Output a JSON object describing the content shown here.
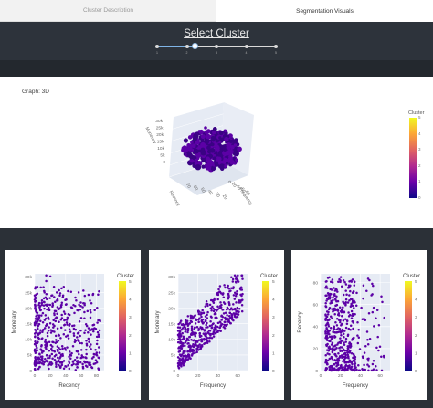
{
  "tabs": [
    {
      "label": "Cluster Description",
      "active": false
    },
    {
      "label": "Segmentation Visuals",
      "active": true
    }
  ],
  "header": {
    "title": "Select Cluster",
    "slider": {
      "marks": [
        "1",
        "2",
        "3",
        "4",
        "5"
      ],
      "value": 2,
      "min": 1,
      "max": 5
    }
  },
  "main": {
    "graph_label": "Graph: 3D",
    "colorbar_title": "Cluster",
    "colorbar_ticks": [
      "5",
      "4",
      "3",
      "2",
      "1",
      "0"
    ],
    "axis3d": {
      "z_label": "Monetary",
      "x_label": "Frequency",
      "y_label": "Recency"
    },
    "z_ticks": [
      "30k",
      "25k",
      "20k",
      "15k",
      "10k",
      "5k",
      "0"
    ]
  },
  "colors": {
    "point": "#5c01a6",
    "point_dark": "#3a0284",
    "pane": "#e6ebf4"
  },
  "chart_data": [
    {
      "type": "scatter",
      "xlabel": "Recency",
      "ylabel": "Monetary",
      "x_ticks": [
        "0",
        "20",
        "40",
        "60",
        "80"
      ],
      "y_ticks": [
        "0",
        "5k",
        "10k",
        "15k",
        "20k",
        "25k",
        "30k"
      ],
      "xlim": [
        0,
        90
      ],
      "ylim": [
        0,
        31000
      ],
      "legend_title": "Cluster",
      "colorbar_ticks": [
        "5",
        "4",
        "3",
        "2",
        "1",
        "0"
      ]
    },
    {
      "type": "scatter",
      "xlabel": "Frequency",
      "ylabel": "Monetary",
      "x_ticks": [
        "0",
        "20",
        "40",
        "60"
      ],
      "y_ticks": [
        "0",
        "5k",
        "10k",
        "15k",
        "20k",
        "25k",
        "30k"
      ],
      "xlim": [
        0,
        70
      ],
      "ylim": [
        0,
        31000
      ],
      "legend_title": "Cluster",
      "colorbar_ticks": [
        "5",
        "4",
        "3",
        "2",
        "1",
        "0"
      ]
    },
    {
      "type": "scatter",
      "xlabel": "Frequency",
      "ylabel": "Recency",
      "x_ticks": [
        "0",
        "20",
        "40",
        "60"
      ],
      "y_ticks": [
        "0",
        "20",
        "40",
        "60",
        "80"
      ],
      "xlim": [
        0,
        70
      ],
      "ylim": [
        0,
        88
      ],
      "legend_title": "Cluster",
      "colorbar_ticks": [
        "5",
        "4",
        "3",
        "2",
        "1",
        "0"
      ]
    }
  ]
}
